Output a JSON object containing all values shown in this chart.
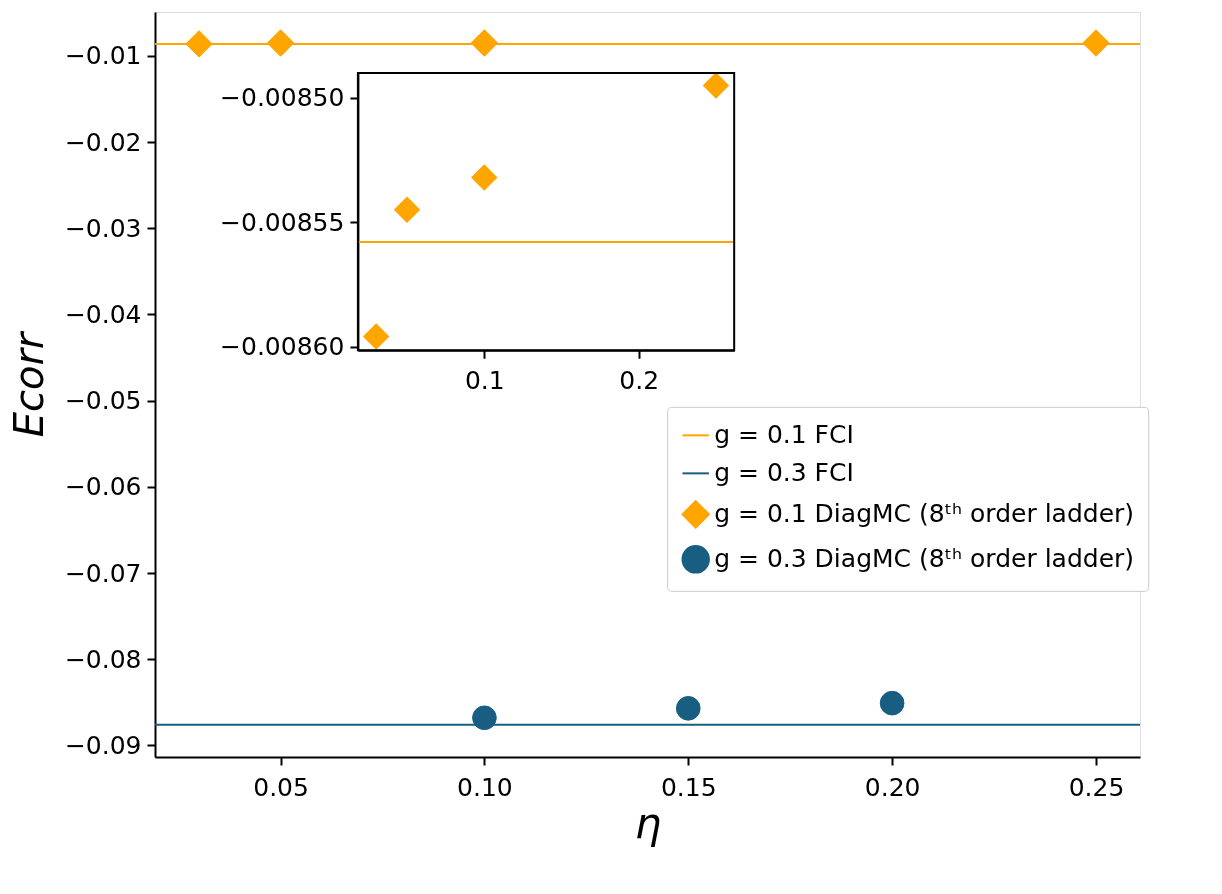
{
  "chart_data": [
    {
      "type": "scatter",
      "xlabel": "η",
      "ylabel": "Ecorr",
      "xlim": [
        0.0192,
        0.2608
      ],
      "ylim": [
        -0.09135,
        -0.0049
      ],
      "xticks": [
        {
          "value": 0.05,
          "label": "0.05"
        },
        {
          "value": 0.1,
          "label": "0.10"
        },
        {
          "value": 0.15,
          "label": "0.15"
        },
        {
          "value": 0.2,
          "label": "0.20"
        },
        {
          "value": 0.25,
          "label": "0.25"
        }
      ],
      "yticks": [
        {
          "value": -0.01,
          "label": "−0.01"
        },
        {
          "value": -0.02,
          "label": "−0.02"
        },
        {
          "value": -0.03,
          "label": "−0.03"
        },
        {
          "value": -0.04,
          "label": "−0.04"
        },
        {
          "value": -0.05,
          "label": "−0.05"
        },
        {
          "value": -0.06,
          "label": "−0.06"
        },
        {
          "value": -0.07,
          "label": "−0.07"
        },
        {
          "value": -0.08,
          "label": "−0.08"
        },
        {
          "value": -0.09,
          "label": "−0.09"
        }
      ],
      "legend": "right",
      "grid": false,
      "series": [
        {
          "name": "g = 0.1 FCI",
          "type": "line",
          "color": "#ffa500",
          "x": [
            0.0192,
            0.2608
          ],
          "values": [
            -0.0086,
            -0.0086
          ]
        },
        {
          "name": "g = 0.3 FCI",
          "type": "line",
          "color": "#185e83",
          "x": [
            0.0192,
            0.2608
          ],
          "values": [
            -0.0876,
            -0.0876
          ]
        },
        {
          "name": "g = 0.1 DiagMC (8ᵗʰ order ladder)",
          "marker": "diamond",
          "color": "#ffa500",
          "x": [
            0.03,
            0.05,
            0.1,
            0.25
          ],
          "values": [
            -0.0086,
            -0.0085,
            -0.0085,
            -0.0085
          ]
        },
        {
          "name": "g = 0.3 DiagMC (8ᵗʰ order ladder)",
          "marker": "circle",
          "color": "#185e83",
          "x": [
            0.1,
            0.15,
            0.2
          ],
          "values": [
            -0.0868,
            -0.0857,
            -0.0851
          ]
        }
      ]
    },
    {
      "type": "scatter",
      "xlim": [
        0.0182,
        0.2618
      ],
      "ylim": [
        -0.0086015,
        -0.00849
      ],
      "xticks": [
        0.1,
        0.2
      ],
      "yticks": [
        {
          "value": -0.0085,
          "label": "−0.00850"
        },
        {
          "value": -0.00855,
          "label": "−0.00855"
        },
        {
          "value": -0.0086,
          "label": "−0.00860"
        }
      ],
      "grid": false,
      "series": [
        {
          "type": "line",
          "color": "#ffa500",
          "x": [
            0.0182,
            0.2618
          ],
          "values": [
            -0.008558,
            -0.008558
          ]
        },
        {
          "marker": "diamond",
          "color": "#ffa500",
          "x": [
            0.03,
            0.05,
            0.1,
            0.25
          ],
          "values": [
            -0.008596,
            -0.008545,
            -0.008532,
            -0.008495
          ]
        }
      ]
    }
  ]
}
